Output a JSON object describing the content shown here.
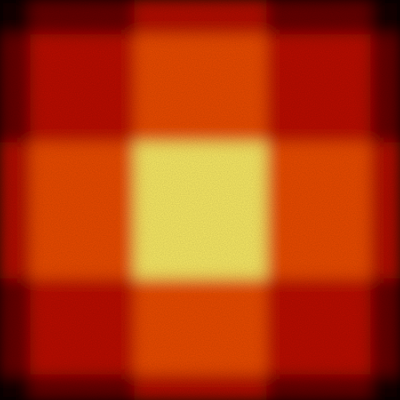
{
  "chart_data": {
    "type": "heatmap",
    "colormap": "hot",
    "colormap_stops": [
      "#000000",
      "#3a0000",
      "#8e0000",
      "#cc1100",
      "#f04a00",
      "#ff8a00",
      "#ffd400",
      "#ffffa0"
    ],
    "value_range": [
      0,
      1
    ],
    "rows": 5,
    "columns": 5,
    "values": [
      [
        0.05,
        0.22,
        0.38,
        0.22,
        0.05
      ],
      [
        0.22,
        0.4,
        0.58,
        0.4,
        0.22
      ],
      [
        0.38,
        0.58,
        0.95,
        0.58,
        0.38
      ],
      [
        0.22,
        0.4,
        0.58,
        0.4,
        0.22
      ],
      [
        0.05,
        0.22,
        0.38,
        0.22,
        0.05
      ]
    ],
    "grid": false,
    "legend": "none",
    "blur": true,
    "noise": true
  }
}
